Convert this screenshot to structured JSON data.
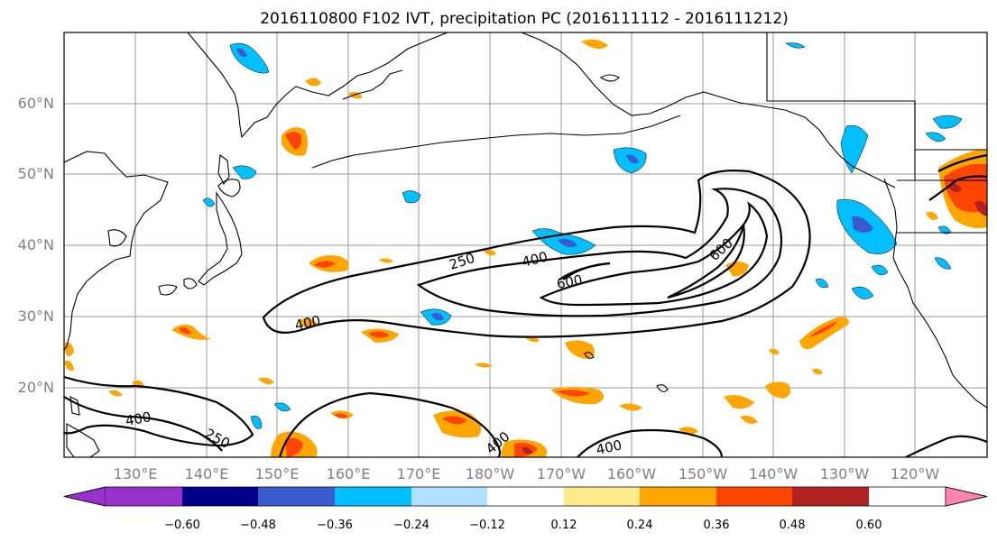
{
  "title": "2016110800 F102 IVT, precipitation PC (2016111112 - 2016111212)",
  "lat_labels": [
    "60°N",
    "50°N",
    "40°N",
    "30°N",
    "20°N"
  ],
  "lon_labels": [
    "130°E",
    "140°E",
    "150°E",
    "160°E",
    "170°E",
    "180°W",
    "170°W",
    "160°W",
    "150°W",
    "140°W",
    "130°W",
    "120°W"
  ],
  "colorbar": {
    "colors": [
      "#9932cc",
      "#00008b",
      "#3a5bcf",
      "#00bfff",
      "#b0e2ff",
      "#ffffff",
      "#ffe98a",
      "#ffa500",
      "#ff4500",
      "#b22222",
      "#ff85b0"
    ],
    "tick_labels": [
      "−0.60",
      "−0.48",
      "−0.36",
      "−0.24",
      "−0.12",
      "0.12",
      "0.24",
      "0.36",
      "0.48",
      "0.60"
    ]
  },
  "ivt_contour_labels": [
    {
      "name": "contour-label-250-a",
      "text": "250"
    },
    {
      "name": "contour-label-400-a",
      "text": "400"
    },
    {
      "name": "contour-label-600-a",
      "text": "600"
    },
    {
      "name": "contour-label-600-b",
      "text": "600"
    },
    {
      "name": "contour-label-400-b",
      "text": "400"
    },
    {
      "name": "contour-label-400-c",
      "text": "400"
    },
    {
      "name": "contour-label-250-b",
      "text": "250"
    },
    {
      "name": "contour-label-400-d",
      "text": "400"
    },
    {
      "name": "contour-label-400-e",
      "text": "400"
    }
  ]
}
